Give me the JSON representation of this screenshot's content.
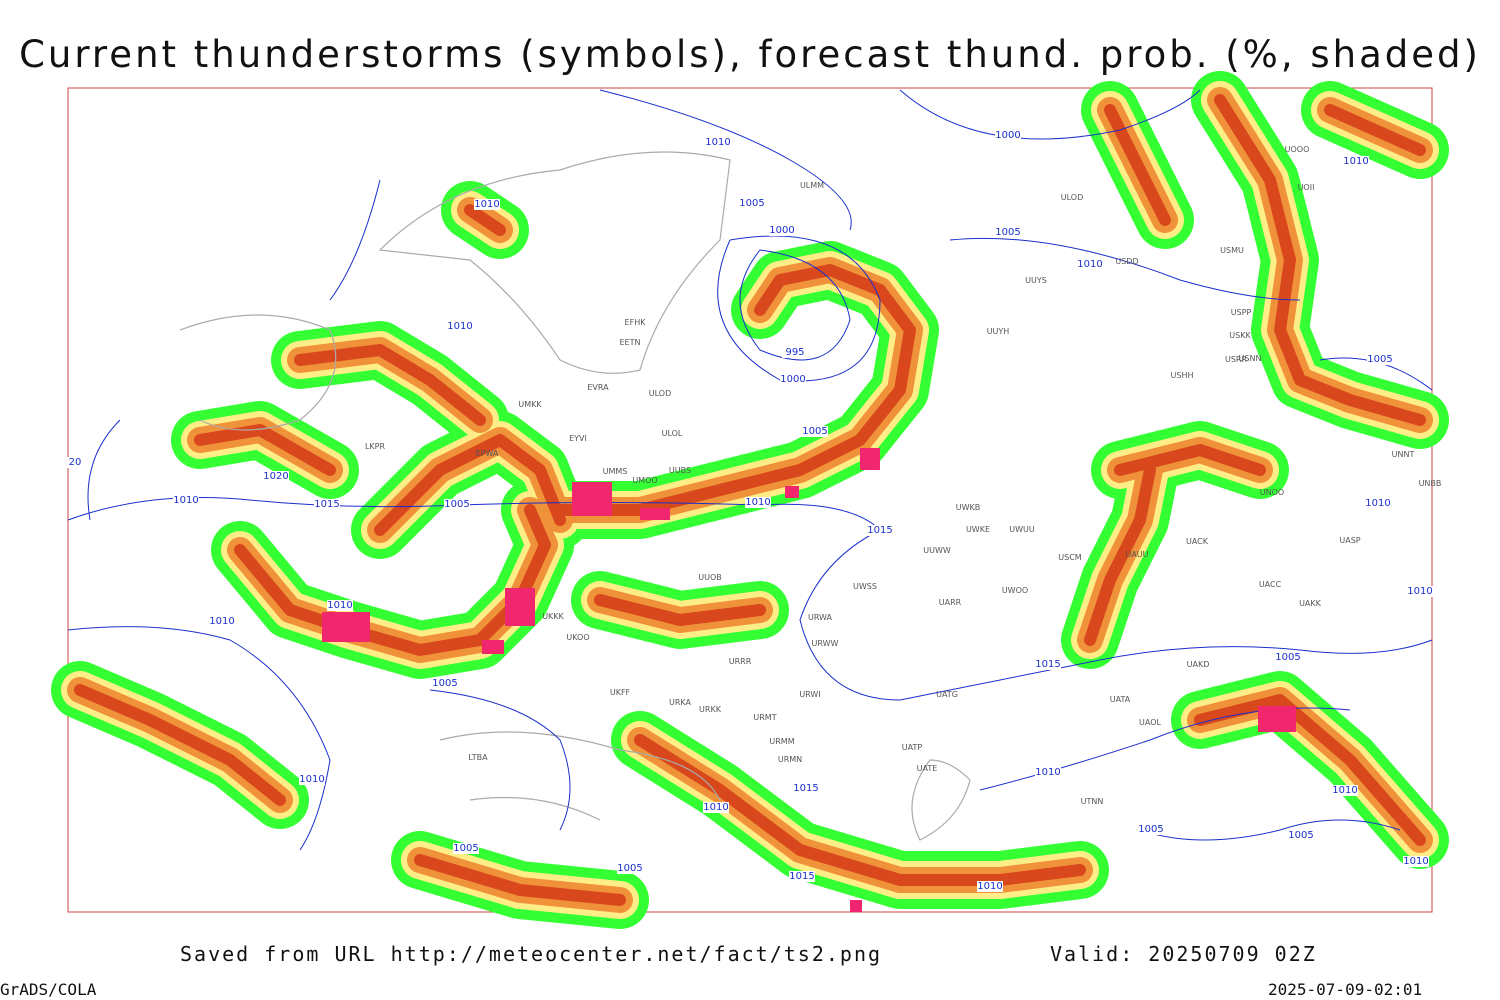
{
  "header": {
    "title": "Current thunderstorms (symbols), forecast thund. prob. (%, shaded)"
  },
  "footer": {
    "source": "Saved from URL http://meteocenter.net/fact/ts2.png",
    "valid": "Valid: 20250709 02Z",
    "software": "GrADS/COLA",
    "timestamp": "2025-07-09-02:01"
  },
  "map": {
    "stations": [
      "ULMM",
      "ULOD",
      "USDD",
      "UUYS",
      "USMU",
      "UUYH",
      "EFHK",
      "EETN",
      "EVRA",
      "ULOD",
      "ULOL",
      "UMMS",
      "UMOO",
      "UUBS",
      "EYVI",
      "UMKK",
      "EPWA",
      "LKPR",
      "UUWW",
      "UWKB",
      "UWKE",
      "UWUU",
      "UWSS",
      "UARR",
      "UWOO",
      "URWA",
      "URWW",
      "UUOB",
      "UKKK",
      "UKOO",
      "URRR",
      "UKFF",
      "URKA",
      "URKK",
      "URMT",
      "URMM",
      "URMN",
      "UATG",
      "UATA",
      "UAOL",
      "UATP",
      "UATE",
      "URWI",
      "UTNN",
      "UACK",
      "UACC",
      "UASP",
      "UAKK",
      "UAKD",
      "UNNT",
      "UNBB",
      "UNOO",
      "UOOO",
      "UOII",
      "USRR",
      "USNN",
      "USHH",
      "USKK",
      "USPP",
      "USCM",
      "UAUU",
      "LTBA"
    ],
    "isobar_labels": [
      "1010",
      "1000",
      "1010",
      "1005",
      "1000",
      "1005",
      "1010",
      "1010",
      "1010",
      "995",
      "1000",
      "1005",
      "1020",
      "1010",
      "1015",
      "1005",
      "1010",
      "1015",
      "1010",
      "1010",
      "1005",
      "1005",
      "1010",
      "1010",
      "1005",
      "1015",
      "1010",
      "1010",
      "1015",
      "1010",
      "1005",
      "1005",
      "1010",
      "1010",
      "1005",
      "1005",
      "1015",
      "1010",
      "20"
    ]
  }
}
